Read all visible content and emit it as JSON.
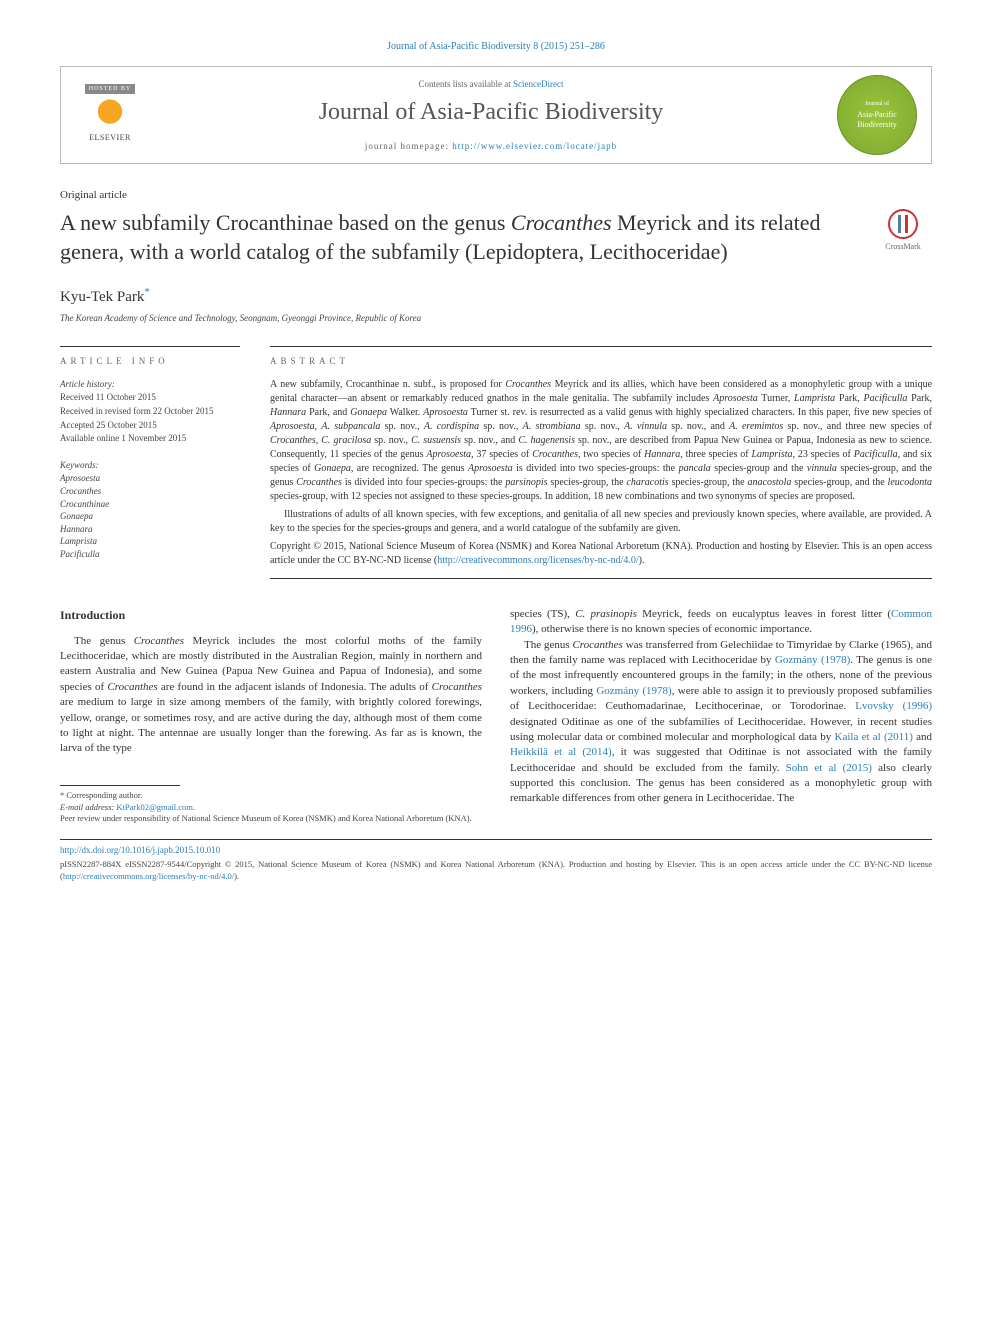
{
  "citation": "Journal of Asia-Pacific Biodiversity 8 (2015) 251–286",
  "header": {
    "hosted_by": "HOSTED BY",
    "publisher": "ELSEVIER",
    "contents_prefix": "Contents lists available at ",
    "contents_link": "ScienceDirect",
    "journal_name": "Journal of Asia-Pacific Biodiversity",
    "homepage_prefix": "journal homepage: ",
    "homepage_url": "http://www.elsevier.com/locate/japb",
    "badge_line1": "Journal of",
    "badge_line2": "Asia-Pacific",
    "badge_line3": "Biodiversity"
  },
  "article_type": "Original article",
  "title_part1": "A new subfamily Crocanthinae based on the genus ",
  "title_italic1": "Crocanthes",
  "title_part2": " Meyrick and its related genera, with a world catalog of the subfamily (Lepidoptera, Lecithoceridae)",
  "crossmark_label": "CrossMark",
  "author": "Kyu-Tek Park",
  "author_marker": "*",
  "affiliation": "The Korean Academy of Science and Technology, Seongnam, Gyeonggi Province, Republic of Korea",
  "info": {
    "head": "ARTICLE INFO",
    "history_head": "Article history:",
    "received": "Received 11 October 2015",
    "revised": "Received in revised form 22 October 2015",
    "accepted": "Accepted 25 October 2015",
    "online": "Available online 1 November 2015",
    "keywords_head": "Keywords:",
    "keywords": [
      "Aprosoesta",
      "Crocanthes",
      "Crocanthinae",
      "Gonaepa",
      "Hannara",
      "Lamprista",
      "Pacificulla"
    ]
  },
  "abstract": {
    "head": "ABSTRACT",
    "para1": "A new subfamily, Crocanthinae n. subf., is proposed for <i>Crocanthes</i> Meyrick and its allies, which have been considered as a monophyletic group with a unique genital character—an absent or remarkably reduced gnathos in the male genitalia. The subfamily includes <i>Aprosoesta</i> Turner, <i>Lamprista</i> Park, <i>Pacificulla</i> Park, <i>Hannara</i> Park, and <i>Gonaepa</i> Walker. <i>Aprosoesta</i> Turner st. rev. is resurrected as a valid genus with highly specialized characters. In this paper, five new species of <i>Aprosoesta</i>, <i>A. subpancala</i> sp. nov., <i>A. cordispina</i> sp. nov., <i>A. strombiana</i> sp. nov., <i>A. vinnula</i> sp. nov., and <i>A. eremimtos</i> sp. nov., and three new species of <i>Crocanthes</i>, <i>C. gracilosa</i> sp. nov., <i>C. susuensis</i> sp. nov., and <i>C. hagenensis</i> sp. nov., are described from Papua New Guinea or Papua, Indonesia as new to science. Consequently, 11 species of the genus <i>Aprosoesta</i>, 37 species of <i>Crocanthes</i>, two species of <i>Hannara</i>, three species of <i>Lamprista</i>, 23 species of <i>Pacificulla</i>, and six species of <i>Gonaepa</i>, are recognized. The genus <i>Aprosoesta</i> is divided into two species-groups: the <i>pancala</i> species-group and the <i>vinnula</i> species-group, and the genus <i>Crocanthes</i> is divided into four species-groups: the <i>parsinopis</i> species-group, the <i>characotis</i> species-group, the <i>anacostola</i> species-group, and the <i>leucodonta</i> species-group, with 12 species not assigned to these species-groups. In addition, 18 new combinations and two synonyms of species are proposed.",
    "para2": "Illustrations of adults of all known species, with few exceptions, and genitalia of all new species and previously known species, where available, are provided. A key to the species for the species-groups and genera, and a world catalogue of the subfamily are given.",
    "copyright": "Copyright © 2015, National Science Museum of Korea (NSMK) and Korea National Arboretum (KNA). Production and hosting by Elsevier. This is an open access article under the CC BY-NC-ND license (",
    "license_url": "http://creativecommons.org/licenses/by-nc-nd/4.0/",
    "copyright_end": ")."
  },
  "body": {
    "intro_head": "Introduction",
    "col1_p1": "The genus <i>Crocanthes</i> Meyrick includes the most colorful moths of the family Lecithoceridae, which are mostly distributed in the Australian Region, mainly in northern and eastern Australia and New Guinea (Papua New Guinea and Papua of Indonesia), and some species of <i>Crocanthes</i> are found in the adjacent islands of Indonesia. The adults of <i>Crocanthes</i> are medium to large in size among members of the family, with brightly colored forewings, yellow, orange, or sometimes rosy, and are active during the day, although most of them come to light at night. The antennae are usually longer than the forewing. As far as is known, the larva of the type",
    "col2_p1": "species (TS), <i>C. prasinopis</i> Meyrick, feeds on eucalyptus leaves in forest litter (<a>Common 1996</a>), otherwise there is no known species of economic importance.",
    "col2_p2": "The genus <i>Crocanthes</i> was transferred from Gelechiidae to Timyridae by Clarke (1965), and then the family name was replaced with Lecithoceridae by <a>Gozmány (1978)</a>. The genus is one of the most infrequently encountered groups in the family; in the others, none of the previous workers, including <a>Gozmány (1978)</a>, were able to assign it to previously proposed subfamilies of Lecithoceridae: Ceuthomadarinae, Lecithocerinae, or Torodorinae. <a>Lvovsky (1996)</a> designated Oditinae as one of the subfamilies of Lecithoceridae. However, in recent studies using molecular data or combined molecular and morphological data by <a>Kaila et al (2011)</a> and <a>Heikkilä et al (2014)</a>, it was suggested that Oditinae is not associated with the family Lecithoceridae and should be excluded from the family. <a>Sohn et al (2015)</a> also clearly supported this conclusion. The genus has been considered as a monophyletic group with remarkable differences from other genera in Lecithoceridae. The"
  },
  "footnotes": {
    "corresponding": "* Corresponding author.",
    "email_label": "E-mail address: ",
    "email": "KtPark02@gmail.com",
    "peer_review": "Peer review under responsibility of National Science Museum of Korea (NSMK) and Korea National Arboretum (KNA)."
  },
  "bottom": {
    "doi": "http://dx.doi.org/10.1016/j.japb.2015.10.010",
    "issn": "pISSN2287-884X eISSN2287-9544/Copyright © 2015, National Science Museum of Korea (NSMK) and Korea National Arboretum (KNA). Production and hosting by Elsevier. This is an open access article under the CC BY-NC-ND license (",
    "license_url": "http://creativecommons.org/licenses/by-nc-nd/4.0/",
    "issn_end": ")."
  },
  "colors": {
    "link": "#2b7db8",
    "badge_green": "#9bc53d",
    "elsevier_orange": "#f6a623"
  }
}
